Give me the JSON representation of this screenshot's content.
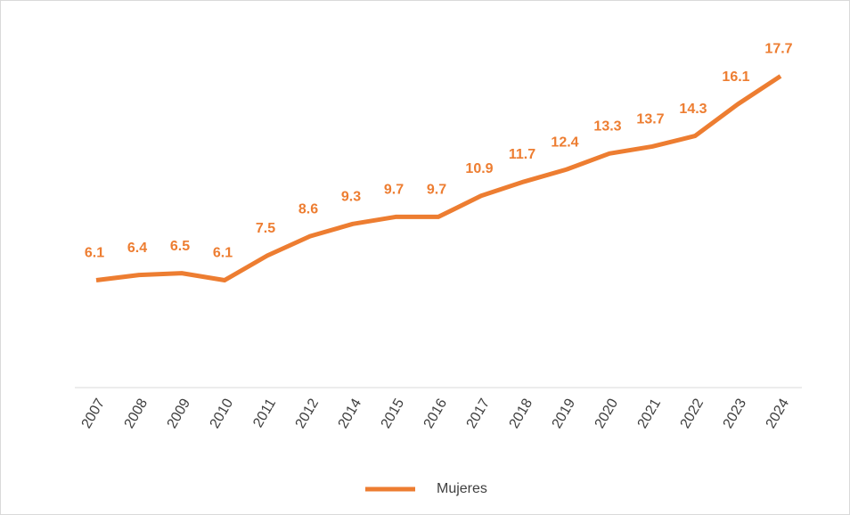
{
  "chart_data": {
    "type": "line",
    "categories": [
      "2007",
      "2008",
      "2009",
      "2010",
      "2011",
      "2012",
      "2014",
      "2015",
      "2016",
      "2017",
      "2018",
      "2019",
      "2020",
      "2021",
      "2022",
      "2023",
      "2024"
    ],
    "series": [
      {
        "name": "Mujeres",
        "color": "#ed7d31",
        "values": [
          6.1,
          6.4,
          6.5,
          6.1,
          7.5,
          8.6,
          9.3,
          9.7,
          9.7,
          10.9,
          11.7,
          12.4,
          13.3,
          13.7,
          14.3,
          16.1,
          17.7
        ]
      }
    ],
    "ylim": [
      0,
      20
    ],
    "legend": "bottom",
    "data_labels": true
  }
}
